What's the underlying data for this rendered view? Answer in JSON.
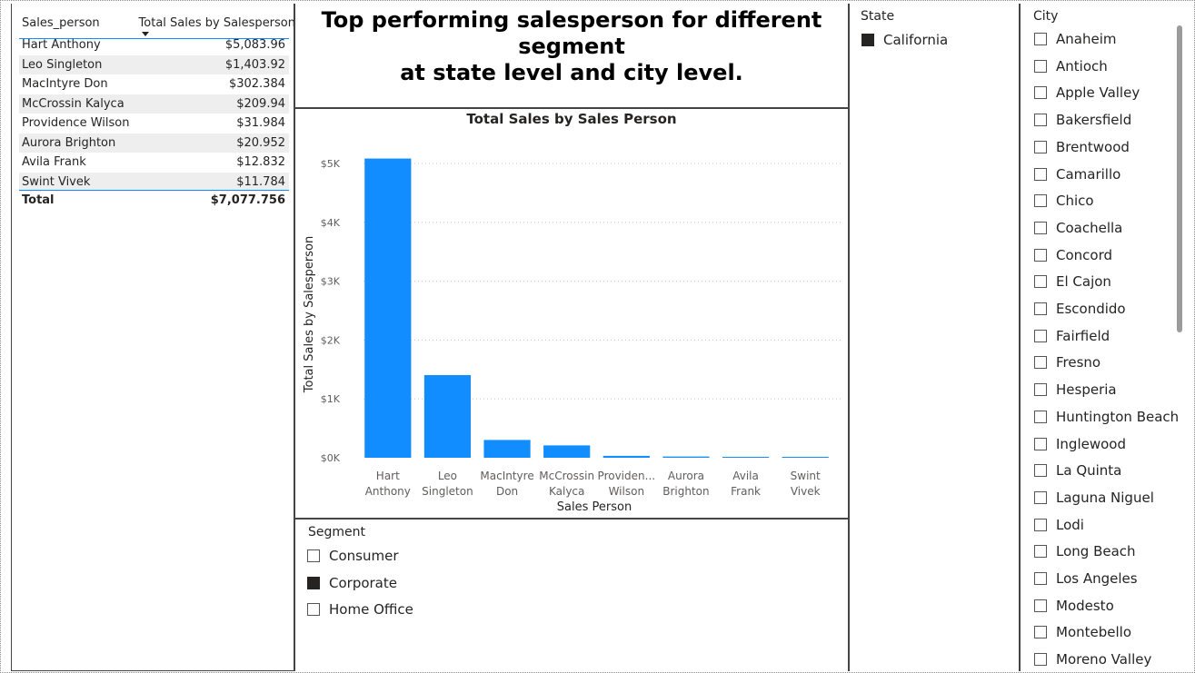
{
  "table": {
    "header_name": "Sales_person",
    "header_sales": "Total Sales by Salesperson",
    "rows": [
      {
        "name": "Hart Anthony",
        "value": "$5,083.96"
      },
      {
        "name": "Leo Singleton",
        "value": "$1,403.92"
      },
      {
        "name": "MacIntyre Don",
        "value": "$302.384"
      },
      {
        "name": "McCrossin Kalyca",
        "value": "$209.94"
      },
      {
        "name": "Providence Wilson",
        "value": "$31.984"
      },
      {
        "name": "Aurora Brighton",
        "value": "$20.952"
      },
      {
        "name": "Avila Frank",
        "value": "$12.832"
      },
      {
        "name": "Swint Vivek",
        "value": "$11.784"
      }
    ],
    "total_label": "Total",
    "total_value": "$7,077.756"
  },
  "title": {
    "line1": "Top performing salesperson for different segment",
    "line2": "at state level and city level."
  },
  "chart_data": {
    "type": "bar",
    "title": "Total Sales by Sales Person",
    "xlabel": "Sales Person",
    "ylabel": "Total Sales by Salesperson",
    "categories": [
      [
        "Hart",
        "Anthony"
      ],
      [
        "Leo",
        "Singleton"
      ],
      [
        "MacIntyre",
        "Don"
      ],
      [
        "McCrossin",
        "Kalyca"
      ],
      [
        "Providen...",
        "Wilson"
      ],
      [
        "Aurora",
        "Brighton"
      ],
      [
        "Avila",
        "Frank"
      ],
      [
        "Swint",
        "Vivek"
      ]
    ],
    "values": [
      5083.96,
      1403.92,
      302.384,
      209.94,
      31.984,
      20.952,
      12.832,
      11.784
    ],
    "ylim": [
      0,
      5000
    ],
    "yticks": [
      {
        "value": 0,
        "label": "$0K"
      },
      {
        "value": 1000,
        "label": "$1K"
      },
      {
        "value": 2000,
        "label": "$2K"
      },
      {
        "value": 3000,
        "label": "$3K"
      },
      {
        "value": 4000,
        "label": "$4K"
      },
      {
        "value": 5000,
        "label": "$5K"
      }
    ],
    "grid": true,
    "bar_color": "#118dff"
  },
  "segment": {
    "header": "Segment",
    "items": [
      {
        "label": "Consumer",
        "checked": false
      },
      {
        "label": "Corporate",
        "checked": true
      },
      {
        "label": "Home Office",
        "checked": false
      }
    ]
  },
  "state": {
    "header": "State",
    "items": [
      {
        "label": "California",
        "checked": true
      }
    ]
  },
  "city": {
    "header": "City",
    "items": [
      {
        "label": "Anaheim"
      },
      {
        "label": "Antioch"
      },
      {
        "label": "Apple Valley"
      },
      {
        "label": "Bakersfield"
      },
      {
        "label": "Brentwood"
      },
      {
        "label": "Camarillo"
      },
      {
        "label": "Chico"
      },
      {
        "label": "Coachella"
      },
      {
        "label": "Concord"
      },
      {
        "label": "El Cajon"
      },
      {
        "label": "Escondido"
      },
      {
        "label": "Fairfield"
      },
      {
        "label": "Fresno"
      },
      {
        "label": "Hesperia"
      },
      {
        "label": "Huntington Beach"
      },
      {
        "label": "Inglewood"
      },
      {
        "label": "La Quinta"
      },
      {
        "label": "Laguna Niguel"
      },
      {
        "label": "Lodi"
      },
      {
        "label": "Long Beach"
      },
      {
        "label": "Los Angeles"
      },
      {
        "label": "Modesto"
      },
      {
        "label": "Montebello"
      },
      {
        "label": "Moreno Valley"
      }
    ]
  }
}
